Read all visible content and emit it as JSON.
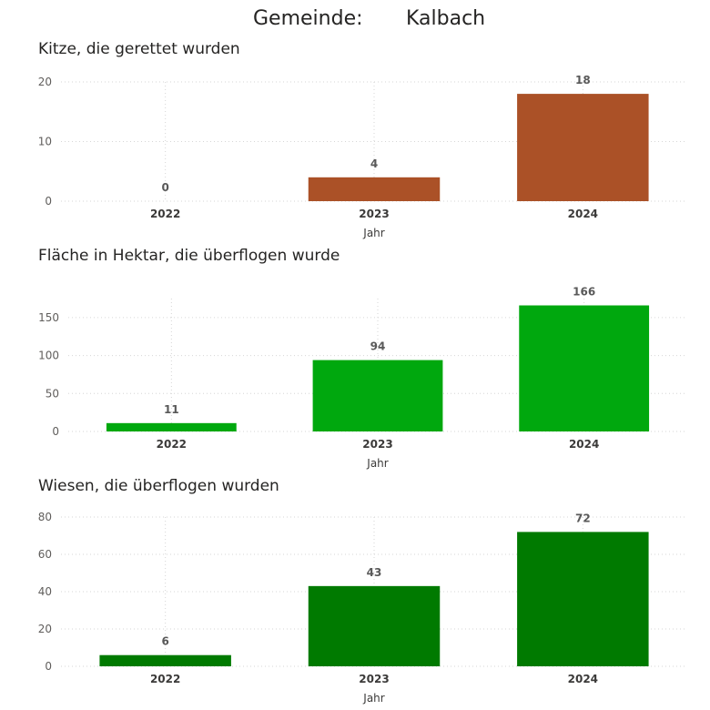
{
  "header": {
    "label": "Gemeinde:",
    "value": "Kalbach"
  },
  "colors": {
    "chart1": "#ab5127",
    "chart2": "#00a80e",
    "chart3": "#007a00"
  },
  "chart_data": [
    {
      "type": "bar",
      "title": "Kitze, die gerettet wurden",
      "categories": [
        "2022",
        "2023",
        "2024"
      ],
      "values": [
        0,
        4,
        18
      ],
      "data_labels": [
        "0",
        "4",
        "18"
      ],
      "xlabel": "Jahr",
      "ylabel": "",
      "ylim": [
        0,
        20
      ],
      "yticks": [
        0,
        10,
        20
      ],
      "grid": true,
      "color": "#ab5127"
    },
    {
      "type": "bar",
      "title": "Fläche in Hektar, die überflogen wurde",
      "categories": [
        "2022",
        "2023",
        "2024"
      ],
      "values": [
        11,
        94,
        166
      ],
      "data_labels": [
        "11",
        "94",
        "166"
      ],
      "xlabel": "Jahr",
      "ylabel": "",
      "ylim": [
        0,
        175
      ],
      "yticks": [
        0,
        50,
        100,
        150
      ],
      "grid": true,
      "color": "#00a80e"
    },
    {
      "type": "bar",
      "title": "Wiesen, die überflogen wurden",
      "categories": [
        "2022",
        "2023",
        "2024"
      ],
      "values": [
        6,
        43,
        72
      ],
      "data_labels": [
        "6",
        "43",
        "72"
      ],
      "xlabel": "Jahr",
      "ylabel": "",
      "ylim": [
        0,
        80
      ],
      "yticks": [
        0,
        20,
        40,
        60,
        80
      ],
      "grid": true,
      "color": "#007a00"
    }
  ]
}
